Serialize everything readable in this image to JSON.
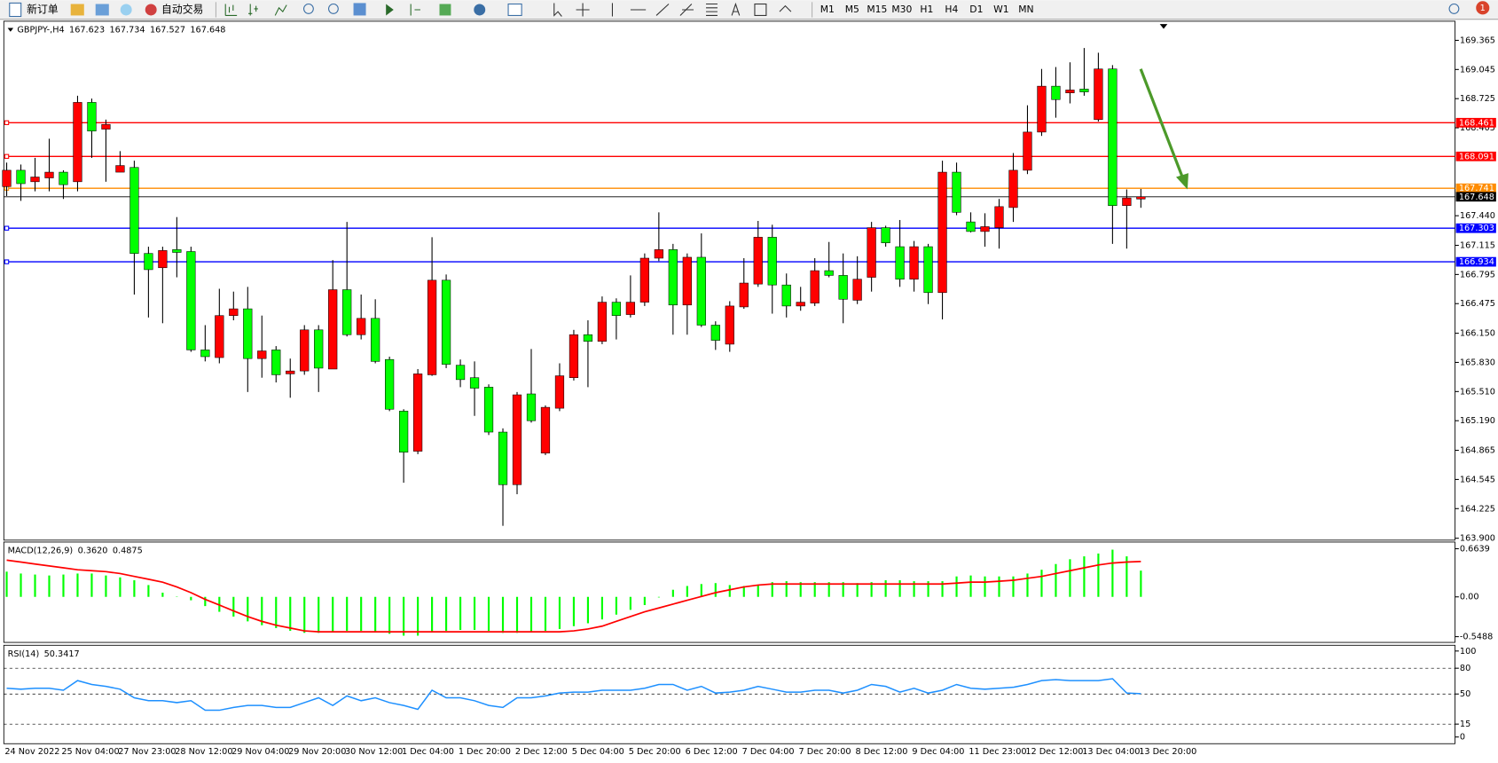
{
  "toolbar": {
    "new_order": "新订单",
    "auto_trading": "自动交易",
    "timeframes": [
      "M1",
      "M5",
      "M15",
      "M30",
      "H1",
      "H4",
      "D1",
      "W1",
      "MN"
    ],
    "notification": "1"
  },
  "chart_data": [
    {
      "type": "candlestick",
      "title": "GBPJPY-,H4",
      "categories": [
        "24 Nov 2022",
        null,
        null,
        null,
        "25 Nov 04:00",
        null,
        null,
        null,
        "27 Nov 23:00",
        null,
        null,
        null,
        "28 Nov 12:00",
        null,
        null,
        null,
        "29 Nov 04:00",
        null,
        null,
        null,
        "29 Nov 20:00",
        null,
        null,
        null,
        "30 Nov 12:00",
        null,
        null,
        null,
        "1 Dec 04:00",
        null,
        null,
        null,
        "1 Dec 20:00",
        null,
        null,
        null,
        "2 Dec 12:00",
        null,
        null,
        null,
        "5 Dec 04:00",
        null,
        null,
        null,
        "5 Dec 20:00",
        null,
        null,
        null,
        "6 Dec 12:00",
        null,
        null,
        null,
        "7 Dec 04:00",
        null,
        null,
        null,
        "7 Dec 20:00",
        null,
        null,
        null,
        "8 Dec 12:00",
        null,
        null,
        null,
        "9 Dec 04:00",
        null,
        null,
        null,
        "11 Dec 23:00",
        null,
        null,
        null,
        "12 Dec 12:00",
        null,
        null,
        null,
        "13 Dec 04:00",
        null,
        null,
        null,
        "13 Dec 20:00"
      ],
      "open": [
        167.76,
        167.939,
        167.813,
        167.855,
        167.918,
        167.813,
        168.684,
        168.39,
        167.918,
        167.97,
        167.026,
        166.869,
        167.068,
        167.047,
        165.967,
        165.883,
        166.344,
        166.418,
        165.872,
        165.967,
        165.704,
        165.736,
        166.187,
        165.757,
        166.628,
        166.134,
        166.313,
        165.862,
        165.295,
        164.855,
        165.694,
        166.732,
        165.799,
        165.662,
        165.558,
        165.065,
        164.488,
        165.484,
        164.834,
        165.327,
        165.662,
        166.134,
        166.061,
        166.491,
        166.355,
        166.491,
        166.974,
        167.068,
        166.46,
        166.984,
        166.239,
        166.03,
        166.439,
        166.69,
        167.204,
        166.68,
        166.449,
        166.481,
        166.837,
        166.785,
        166.512,
        166.764,
        167.309,
        167.1,
        166.743,
        167.1,
        166.596,
        167.918,
        167.372,
        167.267,
        167.309,
        167.53,
        167.939,
        168.358,
        168.862,
        168.788,
        168.83,
        168.495,
        169.051,
        167.551,
        167.623
      ],
      "high": [
        168.023,
        168.002,
        168.075,
        168.285,
        167.939,
        168.757,
        168.726,
        168.495,
        168.149,
        168.044,
        167.1,
        167.1,
        167.425,
        167.1,
        166.239,
        166.638,
        166.607,
        166.659,
        166.344,
        166.009,
        165.872,
        166.239,
        166.239,
        166.953,
        167.372,
        166.575,
        166.523,
        165.893,
        165.316,
        165.757,
        167.204,
        166.795,
        165.862,
        165.841,
        165.589,
        165.106,
        165.505,
        165.977,
        165.358,
        165.82,
        166.187,
        166.292,
        166.554,
        166.533,
        166.785,
        167.026,
        167.477,
        167.131,
        167.026,
        167.246,
        166.281,
        166.502,
        166.974,
        167.383,
        167.341,
        166.806,
        166.659,
        166.974,
        167.152,
        167.026,
        166.995,
        167.372,
        167.33,
        167.393,
        167.163,
        167.131,
        168.044,
        168.023,
        167.477,
        167.467,
        167.624,
        168.128,
        168.652,
        169.051,
        169.072,
        169.124,
        169.281,
        169.229,
        169.093,
        167.729,
        167.734
      ],
      "low": [
        167.656,
        167.603,
        167.708,
        167.708,
        167.624,
        167.708,
        168.075,
        167.813,
        167.918,
        166.575,
        166.323,
        166.26,
        166.764,
        165.946,
        165.841,
        165.82,
        166.292,
        165.505,
        165.662,
        165.61,
        165.442,
        165.694,
        165.505,
        165.757,
        166.114,
        166.082,
        165.82,
        165.295,
        164.509,
        164.823,
        165.683,
        165.767,
        165.558,
        165.243,
        165.033,
        164.036,
        164.383,
        165.169,
        164.813,
        165.295,
        165.631,
        165.558,
        166.03,
        166.082,
        166.323,
        166.449,
        166.942,
        166.134,
        166.134,
        166.218,
        165.967,
        165.946,
        166.418,
        166.659,
        166.365,
        166.323,
        166.397,
        166.449,
        166.764,
        166.26,
        166.47,
        166.607,
        167.1,
        166.659,
        166.607,
        166.47,
        166.302,
        167.446,
        167.257,
        167.1,
        167.079,
        167.372,
        167.897,
        168.316,
        168.516,
        168.673,
        168.757,
        168.474,
        167.131,
        167.079,
        167.527
      ],
      "close": [
        167.939,
        167.792,
        167.865,
        167.918,
        167.781,
        168.684,
        168.369,
        168.442,
        167.991,
        167.026,
        166.848,
        167.058,
        167.037,
        165.967,
        165.893,
        166.344,
        166.418,
        165.872,
        165.956,
        165.694,
        165.736,
        166.187,
        165.767,
        166.628,
        166.134,
        166.313,
        165.841,
        165.316,
        164.844,
        165.704,
        166.732,
        165.809,
        165.641,
        165.547,
        165.065,
        164.488,
        165.474,
        165.19,
        165.337,
        165.683,
        166.134,
        166.061,
        166.491,
        166.344,
        166.491,
        166.974,
        167.068,
        166.46,
        166.984,
        166.239,
        166.072,
        166.449,
        166.701,
        167.204,
        166.68,
        166.449,
        166.491,
        166.837,
        166.785,
        166.523,
        166.743,
        167.309,
        167.142,
        166.743,
        167.1,
        166.596,
        167.918,
        167.477,
        167.267,
        167.32,
        167.54,
        167.939,
        168.358,
        168.862,
        168.715,
        168.82,
        168.799,
        169.051,
        167.551,
        167.635,
        167.648
      ],
      "up_color": "#ff0000",
      "down_color": "#00ff00",
      "levels": [
        {
          "value": 168.461,
          "color": "#ff0000"
        },
        {
          "value": 168.091,
          "color": "#ff0000"
        },
        {
          "value": 167.741,
          "color": "#ff8c00"
        },
        {
          "value": 167.303,
          "color": "#0000ff"
        },
        {
          "value": 166.934,
          "color": "#0000ff"
        }
      ],
      "ylim": [
        163.879,
        169.575
      ],
      "yticks": [
        169.365,
        169.045,
        168.725,
        168.405,
        {
          "value": 167.44,
          "label": "167.440"
        },
        167.115,
        166.795,
        166.475,
        {
          "value": 166.15,
          "label": "166.150"
        },
        {
          "value": 165.83,
          "label": "165.830"
        },
        {
          "value": 165.51,
          "label": "165.510"
        },
        {
          "value": 165.19,
          "label": "165.190"
        },
        164.865,
        164.545,
        164.225,
        {
          "value": 163.9,
          "label": "163.900"
        }
      ]
    },
    {
      "type": "macd",
      "title": "MACD(12,26,9)",
      "histogram": {
        "color": "#00ff00",
        "values": [
          0.348,
          0.322,
          0.308,
          0.295,
          0.308,
          0.322,
          0.322,
          0.295,
          0.269,
          0.229,
          0.163,
          0.058,
          0.005,
          -0.047,
          -0.127,
          -0.206,
          -0.272,
          -0.338,
          -0.391,
          -0.43,
          -0.469,
          -0.496,
          -0.496,
          -0.482,
          -0.469,
          -0.469,
          -0.482,
          -0.509,
          -0.535,
          -0.535,
          -0.482,
          -0.469,
          -0.456,
          -0.456,
          -0.469,
          -0.496,
          -0.496,
          -0.482,
          -0.469,
          -0.443,
          -0.404,
          -0.364,
          -0.311,
          -0.245,
          -0.179,
          -0.113,
          -0.008,
          0.098,
          0.15,
          0.177,
          0.19,
          0.163,
          0.15,
          0.163,
          0.203,
          0.216,
          0.203,
          0.203,
          0.203,
          0.203,
          0.19,
          0.203,
          0.229,
          0.229,
          0.216,
          0.216,
          0.216,
          0.282,
          0.295,
          0.282,
          0.282,
          0.282,
          0.322,
          0.374,
          0.453,
          0.519,
          0.559,
          0.598,
          0.651,
          0.559,
          0.362
        ],
        "value_labels": [
          null,
          null,
          null,
          null,
          null,
          null,
          null,
          null,
          null,
          null,
          null,
          null,
          null,
          null,
          null,
          null,
          null,
          null,
          null,
          null,
          null,
          null,
          null,
          null,
          null,
          null,
          null,
          null,
          null,
          null,
          null,
          null,
          null,
          null,
          null,
          null,
          null,
          null,
          null,
          null,
          null,
          null,
          null,
          null,
          null,
          null,
          null,
          null,
          null,
          null,
          null,
          null,
          null,
          null,
          null,
          null,
          null,
          null,
          null,
          null,
          null,
          null,
          null,
          null,
          null,
          null,
          null,
          null,
          null,
          null,
          null,
          null,
          null,
          null,
          null,
          null,
          null,
          null,
          null,
          null,
          "0.3620"
        ]
      },
      "signal": {
        "color": "#ff0000",
        "values": [
          0.506,
          0.48,
          0.453,
          0.427,
          0.401,
          0.374,
          0.361,
          0.348,
          0.322,
          0.282,
          0.243,
          0.203,
          0.137,
          0.058,
          -0.034,
          -0.113,
          -0.193,
          -0.272,
          -0.338,
          -0.391,
          -0.43,
          -0.469,
          -0.482,
          -0.482,
          -0.482,
          -0.482,
          -0.482,
          -0.482,
          -0.482,
          -0.482,
          -0.482,
          -0.482,
          -0.482,
          -0.482,
          -0.482,
          -0.482,
          -0.482,
          -0.482,
          -0.482,
          -0.482,
          -0.469,
          -0.443,
          -0.404,
          -0.338,
          -0.272,
          -0.206,
          -0.153,
          -0.1,
          -0.047,
          0.005,
          0.058,
          0.098,
          0.137,
          0.163,
          0.177,
          0.177,
          0.177,
          0.177,
          0.177,
          0.177,
          0.177,
          0.177,
          0.177,
          0.177,
          0.177,
          0.177,
          0.177,
          0.19,
          0.203,
          0.203,
          0.216,
          0.229,
          0.256,
          0.282,
          0.322,
          0.361,
          0.401,
          0.44,
          0.467,
          0.48,
          0.4875
        ]
      },
      "ylim": [
        -0.628,
        0.756
      ],
      "yticks": [
        0.6639,
        {
          "value": 0,
          "label": "0.00"
        },
        -0.5488
      ]
    },
    {
      "type": "rsi",
      "title": "RSI(14)",
      "color": "#1e90ff",
      "values": [
        56.7,
        55.6,
        56.7,
        56.7,
        54.4,
        65.6,
        61.1,
        58.9,
        55.6,
        45.6,
        42.2,
        42.2,
        40,
        42.2,
        31.1,
        31.1,
        34.4,
        36.7,
        36.7,
        34.4,
        34.4,
        40,
        45.6,
        36.7,
        47.8,
        42.2,
        45.6,
        40,
        36.7,
        32.2,
        54.4,
        45.6,
        45.6,
        42.2,
        36.7,
        34.4,
        45.6,
        45.6,
        47.8,
        51.1,
        52.2,
        52.2,
        54.4,
        54.4,
        54.4,
        56.7,
        61.1,
        61.1,
        54.4,
        58.9,
        51.1,
        52.2,
        54.4,
        58.9,
        55.6,
        52.2,
        52.2,
        54.4,
        54.4,
        51.1,
        54.4,
        61.1,
        58.9,
        52.2,
        56.7,
        51.1,
        54.4,
        61.1,
        56.7,
        55.6,
        56.7,
        57.8,
        61.1,
        65.6,
        66.7,
        65.6,
        65.6,
        65.6,
        67.8,
        51.1,
        50.3417
      ],
      "levels": [
        80,
        50,
        15
      ],
      "ylim": [
        -7.8,
        106.7
      ],
      "yticks": [
        100,
        80,
        50,
        15,
        0
      ]
    }
  ]
}
